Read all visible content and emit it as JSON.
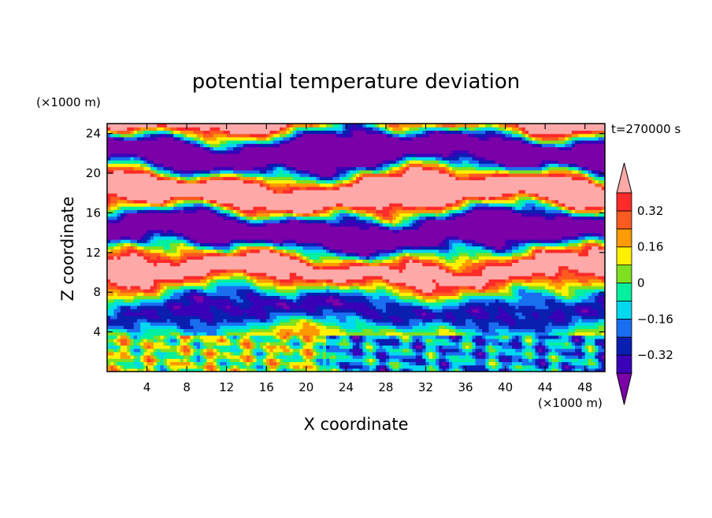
{
  "chart_data": {
    "type": "heatmap",
    "title": "potential temperature deviation",
    "xlabel": "X coordinate",
    "ylabel": "Z coordinate",
    "x_unit": "(×1000 m)",
    "y_unit": "(×1000 m)",
    "time_label": "t=270000 s",
    "xlim": [
      0,
      50
    ],
    "ylim": [
      0,
      25
    ],
    "x_ticks": [
      4,
      8,
      12,
      16,
      20,
      24,
      28,
      32,
      36,
      40,
      44,
      48
    ],
    "y_ticks": [
      4,
      8,
      12,
      16,
      20,
      24
    ],
    "colorbar": {
      "levels": [
        -0.4,
        -0.32,
        -0.24,
        -0.16,
        -0.08,
        0,
        0.08,
        0.16,
        0.24,
        0.32,
        0.4
      ],
      "tick_labels": [
        "0.32",
        "0.16",
        "0",
        "−0.16",
        "−0.32"
      ],
      "tick_values": [
        0.32,
        0.16,
        0,
        -0.16,
        -0.32
      ],
      "colors": [
        "#7b00a8",
        "#3a00b8",
        "#0a1fb0",
        "#1a6ef0",
        "#00d8f0",
        "#00f0a0",
        "#7ee020",
        "#fff000",
        "#ff9a00",
        "#ff5a20",
        "#ff2a2a",
        "#ffa8a8"
      ],
      "extend": "both"
    }
  }
}
